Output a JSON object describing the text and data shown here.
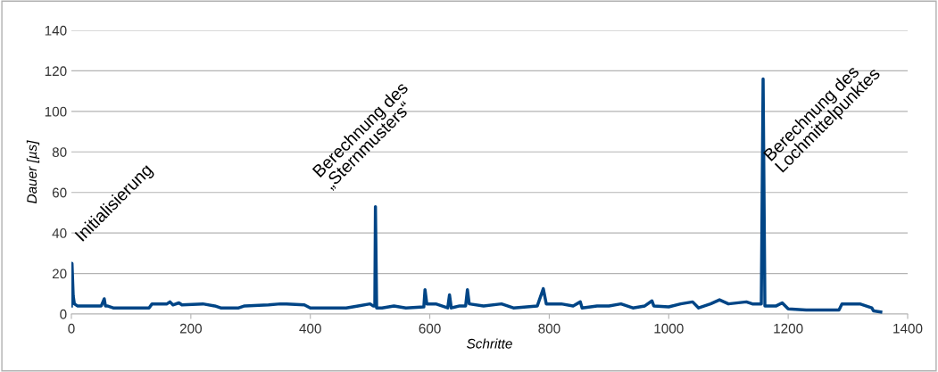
{
  "chart_data": {
    "type": "line",
    "xlabel": "Schritte",
    "ylabel": "Dauer [µs]",
    "xlim": [
      0,
      1400
    ],
    "xticks": [
      0,
      200,
      400,
      600,
      800,
      1000,
      1200,
      1400
    ],
    "ylim": [
      0,
      140
    ],
    "yticks": [
      0,
      20,
      40,
      60,
      80,
      100,
      120,
      140
    ],
    "grid": "y",
    "marker": "none",
    "line_style": "solid",
    "series": [
      {
        "color": "#004586",
        "x": [
          0,
          1,
          3,
          5,
          10,
          50,
          55,
          57,
          60,
          70,
          100,
          130,
          135,
          160,
          165,
          170,
          180,
          185,
          220,
          240,
          250,
          280,
          290,
          330,
          350,
          360,
          390,
          400,
          420,
          440,
          460,
          480,
          500,
          505,
          508,
          509,
          511,
          520,
          540,
          560,
          590,
          592,
          595,
          610,
          620,
          630,
          633,
          636,
          650,
          660,
          663,
          666,
          690,
          720,
          740,
          780,
          790,
          795,
          820,
          840,
          852,
          855,
          880,
          900,
          920,
          940,
          960,
          972,
          975,
          1000,
          1020,
          1040,
          1050,
          1070,
          1085,
          1100,
          1130,
          1140,
          1155,
          1158,
          1161,
          1180,
          1190,
          1200,
          1230,
          1260,
          1285,
          1290,
          1320,
          1340,
          1343,
          1355
        ],
        "values": [
          4,
          25,
          9,
          5,
          4,
          4,
          7.5,
          4,
          4,
          3,
          3,
          3,
          5,
          5,
          6,
          4.5,
          5.5,
          4.5,
          5,
          4,
          3,
          3,
          4,
          4.5,
          5,
          5,
          4.5,
          3,
          3,
          3,
          3,
          4,
          5,
          4,
          4,
          53,
          3,
          3,
          4,
          3,
          3.5,
          12,
          5,
          5,
          4,
          3,
          9.5,
          3,
          4,
          4,
          12,
          5,
          4,
          5,
          3,
          4,
          12.5,
          5,
          5,
          4,
          6,
          3,
          4,
          4,
          5,
          3,
          4,
          6.5,
          4,
          3.5,
          5,
          6,
          3,
          5,
          7,
          5,
          6,
          5,
          5,
          116,
          4,
          4,
          5.5,
          2.5,
          2,
          2,
          2,
          5,
          5,
          3,
          1.5,
          1
        ]
      }
    ],
    "annotations": [
      {
        "text": "Initialisierung",
        "x": 1,
        "y": 25
      },
      {
        "text": "Berechnung des\n„Sternmusters“",
        "x": 509,
        "y": 53
      },
      {
        "text": "Berechnung des\nLochmittelpunktes",
        "x": 1158,
        "y": 116
      }
    ]
  }
}
